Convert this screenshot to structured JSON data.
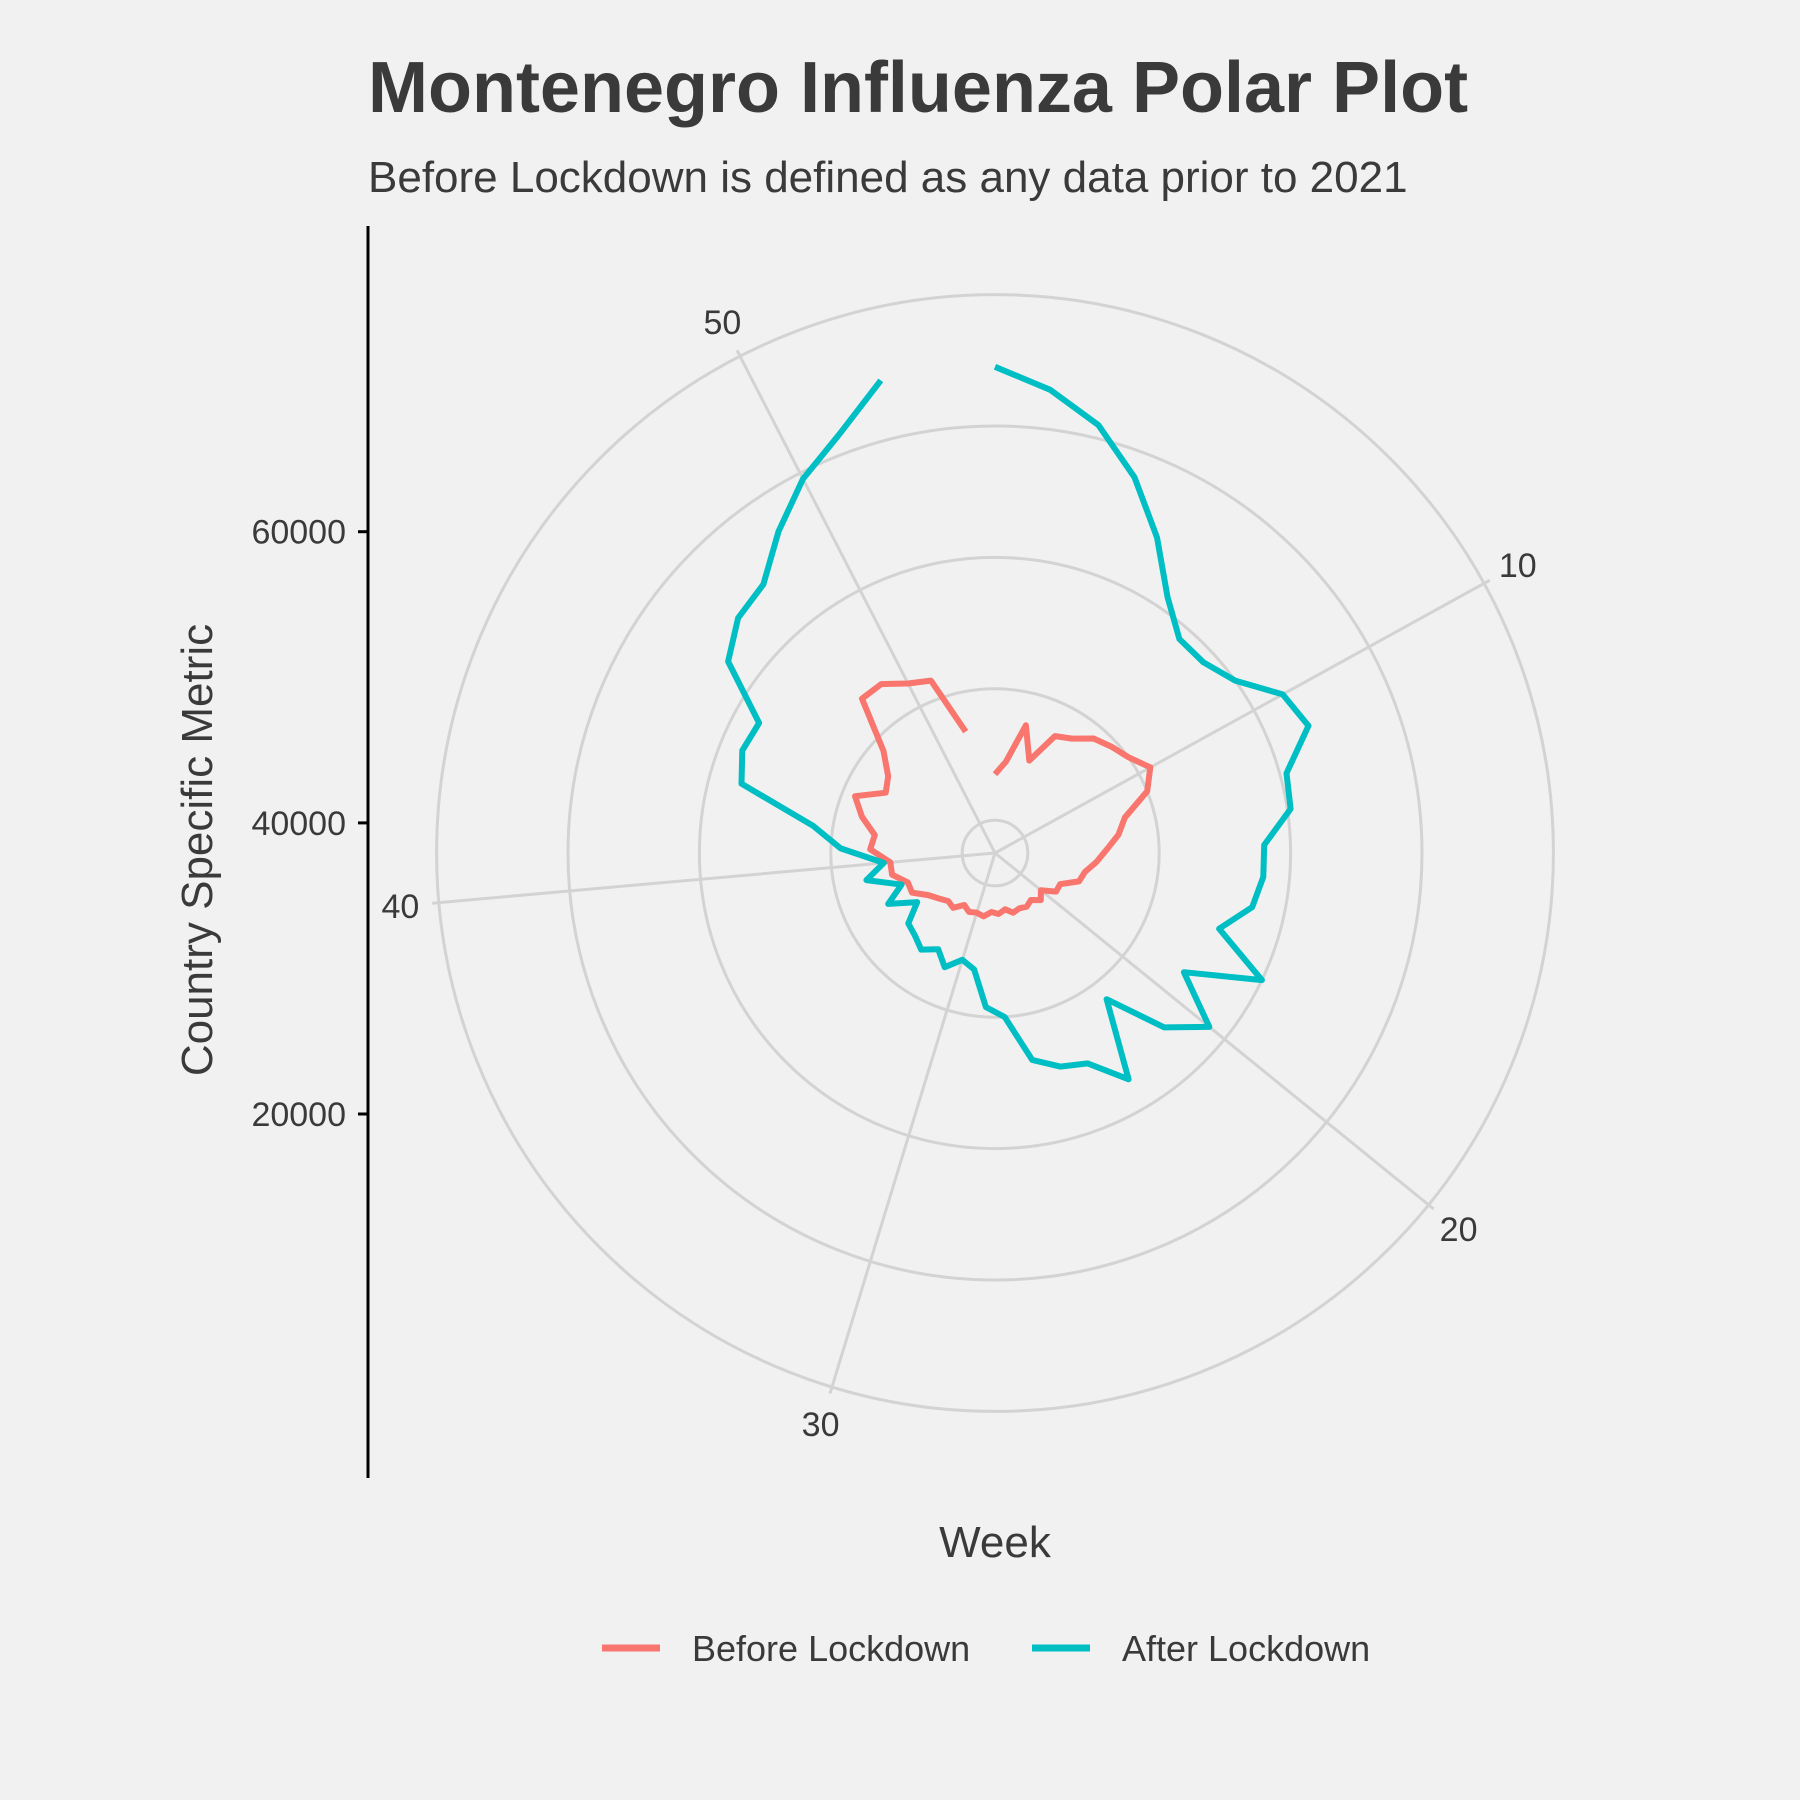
{
  "chart_data": {
    "type": "line",
    "coordinate_system": "polar",
    "title": "Montenegro Influenza Polar Plot",
    "subtitle": "Before Lockdown is defined as any data prior to 2021",
    "xlabel": "Week",
    "ylabel": "Country Specific Metric",
    "x_ticks": [
      "10",
      "20",
      "30",
      "40",
      "50"
    ],
    "y_ticks": [
      "20000",
      "40000",
      "60000"
    ],
    "grid": true,
    "legend_position": "bottom",
    "series": [
      {
        "name": "Before Lockdown",
        "color": "#F8766D",
        "x": [
          1,
          2,
          3,
          4,
          5,
          6,
          7,
          8,
          9,
          10,
          11,
          12,
          13,
          14,
          15,
          16,
          17,
          18,
          19,
          20,
          21,
          22,
          23,
          24,
          25,
          26,
          27,
          28,
          29,
          30,
          31,
          32,
          33,
          34,
          35,
          36,
          37,
          38,
          39,
          40,
          41,
          42,
          43,
          44,
          45,
          46,
          47,
          48,
          49,
          50,
          51,
          52
        ],
        "y": [
          7000,
          9000,
          15000,
          10000,
          15000,
          16000,
          18000,
          19000,
          20000,
          22000,
          20000,
          15500,
          14000,
          12000,
          10500,
          9000,
          8500,
          6000,
          6000,
          4000,
          5000,
          4000,
          4500,
          4200,
          4500,
          3700,
          4300,
          4000,
          4800,
          4500,
          4800,
          4200,
          5500,
          5200,
          6000,
          7000,
          9000,
          9000,
          11000,
          11000,
          14000,
          13500,
          16000,
          18000,
          14000,
          15000,
          18000,
          26000,
          26000,
          24000,
          23000,
          14000
        ]
      },
      {
        "name": "After Lockdown",
        "color": "#00BFC4",
        "x": [
          1,
          2,
          3,
          4,
          5,
          6,
          7,
          8,
          9,
          10,
          11,
          12,
          13,
          14,
          15,
          16,
          17,
          18,
          19,
          20,
          21,
          22,
          23,
          24,
          25,
          26,
          27,
          28,
          29,
          30,
          31,
          32,
          33,
          34,
          35,
          36,
          37,
          38,
          39,
          40,
          41,
          42,
          43,
          44,
          45,
          46,
          47,
          48,
          49,
          50,
          51,
          52
        ],
        "y": [
          69000,
          66000,
          62000,
          56000,
          49000,
          42000,
          38000,
          38000,
          40000,
          45000,
          46500,
          41000,
          40500,
          36000,
          36000,
          35000,
          31000,
          40000,
          29000,
          37000,
          32000,
          23000,
          35000,
          30000,
          29000,
          27000,
          20000,
          18500,
          13000,
          12000,
          14000,
          12000,
          13500,
          12500,
          12000,
          9000,
          13000,
          10000,
          15000,
          12000,
          18500,
          23000,
          35000,
          36500,
          36000,
          45000,
          48000,
          49000,
          54000,
          59000,
          63000,
          69000
        ]
      }
    ]
  }
}
